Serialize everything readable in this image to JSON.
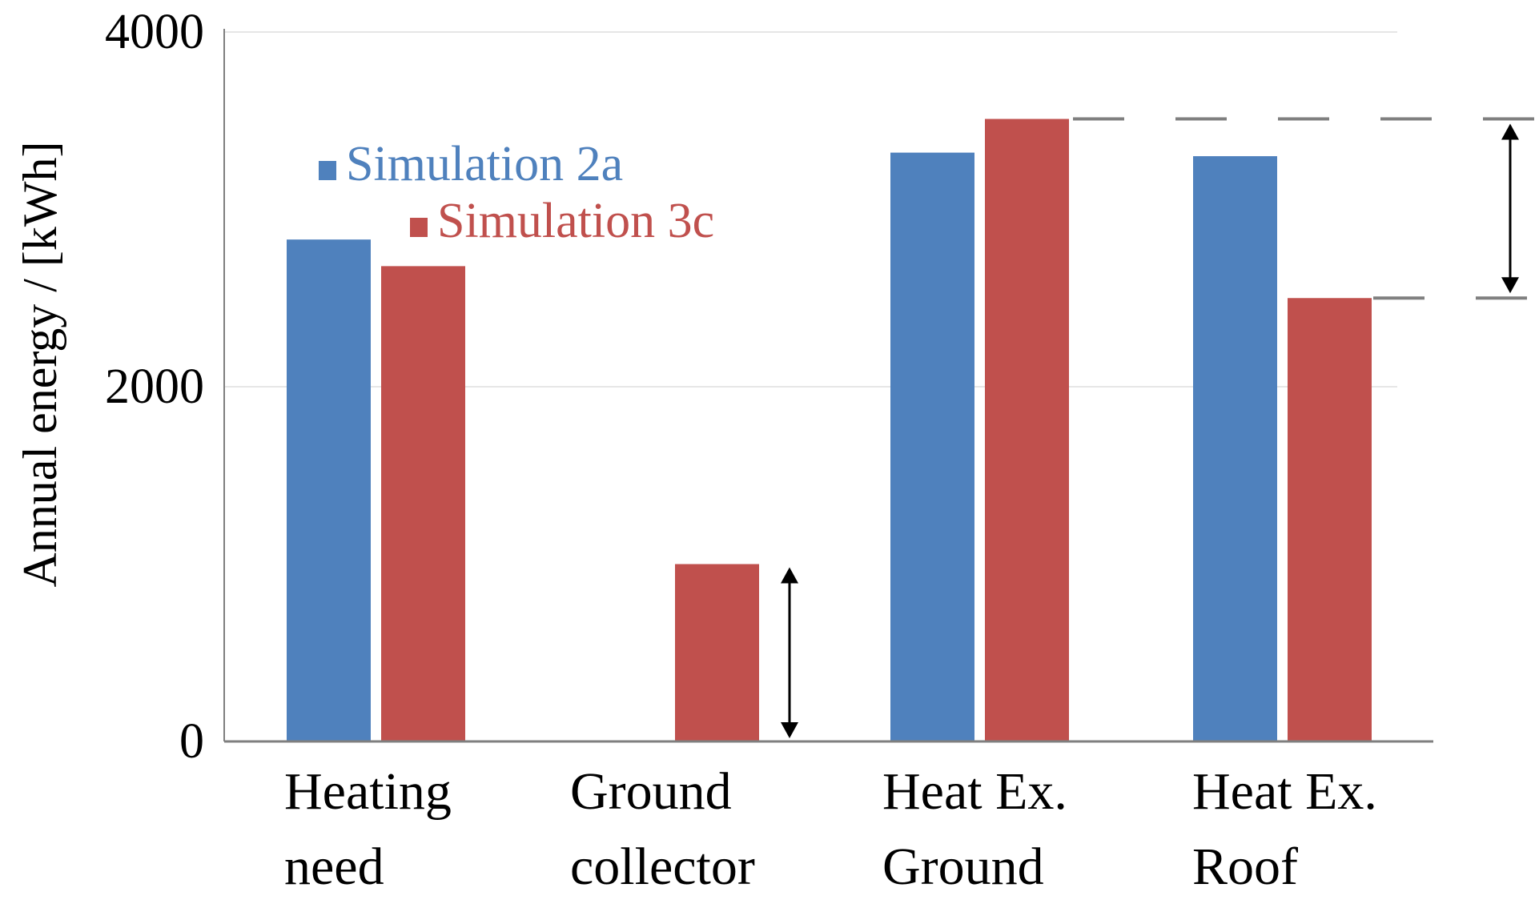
{
  "chart_data": {
    "type": "bar",
    "title": "",
    "xlabel": "",
    "ylabel": "Annual energy / [kWh]",
    "ylim": [
      0,
      4000
    ],
    "yticks": [
      0,
      2000,
      4000
    ],
    "grid": true,
    "legend_position": "top-left",
    "categories": [
      [
        "Heating",
        "need"
      ],
      [
        "Ground",
        "collector"
      ],
      [
        "Heat Ex.",
        "Ground"
      ],
      [
        "Heat Ex.",
        "Roof"
      ]
    ],
    "series": [
      {
        "name": "Simulation 2a",
        "color": "#4f81bd",
        "values": [
          2830,
          0,
          3320,
          3300
        ]
      },
      {
        "name": "Simulation 3c",
        "color": "#c0504d",
        "values": [
          2680,
          1000,
          3510,
          2500
        ]
      }
    ],
    "annotations": [
      {
        "type": "double-arrow",
        "category_index": 1,
        "from": 0,
        "to": 1000
      },
      {
        "type": "double-arrow",
        "category_index": 3,
        "from": 2500,
        "to": 3510
      }
    ]
  }
}
